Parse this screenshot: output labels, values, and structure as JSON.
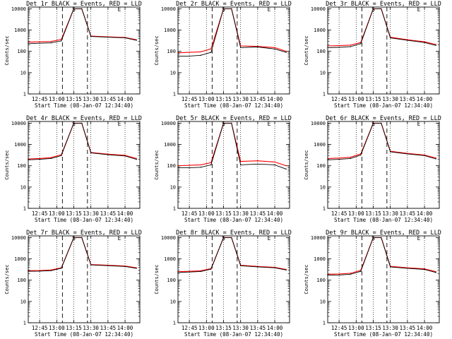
{
  "figure": {
    "ylabel": "Counts/sec",
    "xlabel": "Start Time (08-Jan-07 12:34:40)",
    "x_ticks": [
      "12:45",
      "13:00",
      "13:15",
      "13:30",
      "13:45",
      "14:00"
    ],
    "y_ticks": [
      "1",
      "10",
      "100",
      "1000",
      "10000"
    ],
    "event_markers": [
      "S",
      "E"
    ],
    "colors": {
      "events": "#000000",
      "lld": "#ff0000",
      "axes": "#000000"
    }
  },
  "chart_data": [
    {
      "type": "line",
      "title": "Det 1r BLACK = Events, RED = LLD",
      "x": [
        "12:35",
        "12:45",
        "12:55",
        "13:04",
        "13:15",
        "13:22",
        "13:30",
        "13:45",
        "14:00",
        "14:10"
      ],
      "series": [
        {
          "name": "Events",
          "values": [
            230,
            240,
            250,
            310,
            10000,
            10000,
            500,
            460,
            430,
            330
          ]
        },
        {
          "name": "LLD",
          "values": [
            270,
            280,
            290,
            360,
            10000,
            10000,
            520,
            480,
            450,
            350
          ]
        }
      ],
      "ylim": [
        1,
        12000
      ],
      "log_y": true
    },
    {
      "type": "line",
      "title": "Det 2r BLACK = Events, RED = LLD",
      "x": [
        "12:35",
        "12:45",
        "12:55",
        "13:04",
        "13:15",
        "13:22",
        "13:30",
        "13:45",
        "14:00",
        "14:10"
      ],
      "series": [
        {
          "name": "Events",
          "values": [
            60,
            60,
            65,
            90,
            10000,
            10000,
            150,
            160,
            130,
            90
          ]
        },
        {
          "name": "LLD",
          "values": [
            85,
            90,
            95,
            130,
            10000,
            10000,
            180,
            170,
            150,
            100
          ]
        }
      ],
      "ylim": [
        1,
        12000
      ],
      "log_y": true
    },
    {
      "type": "line",
      "title": "Det 3r BLACK = Events, RED = LLD",
      "x": [
        "12:35",
        "12:45",
        "12:55",
        "13:04",
        "13:15",
        "13:22",
        "13:30",
        "13:45",
        "14:00",
        "14:10"
      ],
      "series": [
        {
          "name": "Events",
          "values": [
            150,
            155,
            165,
            230,
            10000,
            10000,
            430,
            330,
            260,
            190
          ]
        },
        {
          "name": "LLD",
          "values": [
            180,
            185,
            195,
            260,
            10000,
            10000,
            460,
            350,
            280,
            210
          ]
        }
      ],
      "ylim": [
        1,
        12000
      ],
      "log_y": true
    },
    {
      "type": "line",
      "title": "Det 4r BLACK = Events, RED = LLD",
      "x": [
        "12:35",
        "12:45",
        "12:55",
        "13:04",
        "13:15",
        "13:22",
        "13:30",
        "13:45",
        "14:00",
        "14:10"
      ],
      "series": [
        {
          "name": "Events",
          "values": [
            190,
            200,
            220,
            300,
            10000,
            10000,
            400,
            330,
            290,
            200
          ]
        },
        {
          "name": "LLD",
          "values": [
            210,
            220,
            240,
            330,
            10000,
            10000,
            420,
            350,
            310,
            220
          ]
        }
      ],
      "ylim": [
        1,
        12000
      ],
      "log_y": true
    },
    {
      "type": "line",
      "title": "Det 5r BLACK = Events, RED = LLD",
      "x": [
        "12:35",
        "12:45",
        "12:55",
        "13:04",
        "13:15",
        "13:22",
        "13:30",
        "13:45",
        "14:00",
        "14:10"
      ],
      "series": [
        {
          "name": "Events",
          "values": [
            80,
            80,
            85,
            110,
            10000,
            10000,
            110,
            120,
            110,
            70
          ]
        },
        {
          "name": "LLD",
          "values": [
            100,
            105,
            110,
            140,
            10000,
            10000,
            160,
            170,
            150,
            100
          ]
        }
      ],
      "ylim": [
        1,
        12000
      ],
      "log_y": true
    },
    {
      "type": "line",
      "title": "Det 6r BLACK = Events, RED = LLD",
      "x": [
        "12:35",
        "12:45",
        "12:55",
        "13:04",
        "13:15",
        "13:22",
        "13:30",
        "13:45",
        "14:00",
        "14:10"
      ],
      "series": [
        {
          "name": "Events",
          "values": [
            190,
            200,
            220,
            320,
            10000,
            10000,
            450,
            360,
            300,
            210
          ]
        },
        {
          "name": "LLD",
          "values": [
            220,
            230,
            250,
            360,
            10000,
            10000,
            480,
            380,
            320,
            230
          ]
        }
      ],
      "ylim": [
        1,
        12000
      ],
      "log_y": true
    },
    {
      "type": "line",
      "title": "Det 7r BLACK = Events, RED = LLD",
      "x": [
        "12:35",
        "12:45",
        "12:55",
        "13:04",
        "13:15",
        "13:22",
        "13:30",
        "13:45",
        "14:00",
        "14:10"
      ],
      "series": [
        {
          "name": "Events",
          "values": [
            260,
            265,
            280,
            360,
            10000,
            10000,
            520,
            480,
            440,
            360
          ]
        },
        {
          "name": "LLD",
          "values": [
            280,
            285,
            300,
            380,
            10000,
            10000,
            540,
            500,
            460,
            380
          ]
        }
      ],
      "ylim": [
        1,
        12000
      ],
      "log_y": true
    },
    {
      "type": "line",
      "title": "Det 8r BLACK = Events, RED = LLD",
      "x": [
        "12:35",
        "12:45",
        "12:55",
        "13:04",
        "13:15",
        "13:22",
        "13:30",
        "13:45",
        "14:00",
        "14:10"
      ],
      "series": [
        {
          "name": "Events",
          "values": [
            230,
            240,
            255,
            330,
            10000,
            10000,
            480,
            420,
            380,
            300
          ]
        },
        {
          "name": "LLD",
          "values": [
            250,
            260,
            275,
            350,
            10000,
            10000,
            500,
            440,
            400,
            320
          ]
        }
      ],
      "ylim": [
        1,
        12000
      ],
      "log_y": true
    },
    {
      "type": "line",
      "title": "Det 9r BLACK = Events, RED = LLD",
      "x": [
        "12:35",
        "12:45",
        "12:55",
        "13:04",
        "13:15",
        "13:22",
        "13:30",
        "13:45",
        "14:00",
        "14:10"
      ],
      "series": [
        {
          "name": "Events",
          "values": [
            170,
            175,
            190,
            260,
            10000,
            10000,
            420,
            360,
            320,
            230
          ]
        },
        {
          "name": "LLD",
          "values": [
            190,
            195,
            210,
            290,
            10000,
            10000,
            450,
            380,
            340,
            250
          ]
        }
      ],
      "ylim": [
        1,
        12000
      ],
      "log_y": true
    }
  ]
}
